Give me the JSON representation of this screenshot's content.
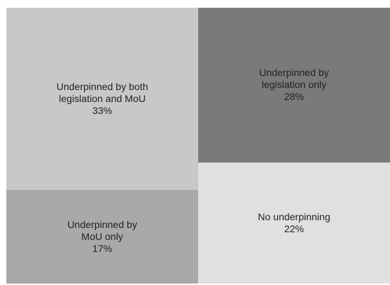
{
  "chart_data": {
    "type": "treemap",
    "categories": [
      "Underpinned by both legislation and MoU",
      "Underpinned by legislation only",
      "Underpinned by MoU only",
      "No underpinning"
    ],
    "values": [
      33,
      28,
      17,
      22
    ],
    "value_labels": [
      "33%",
      "28%",
      "17%",
      "22%"
    ],
    "colors": [
      "#c8c8c8",
      "#7a7a7a",
      "#a9a9a9",
      "#e0e0e0"
    ]
  }
}
